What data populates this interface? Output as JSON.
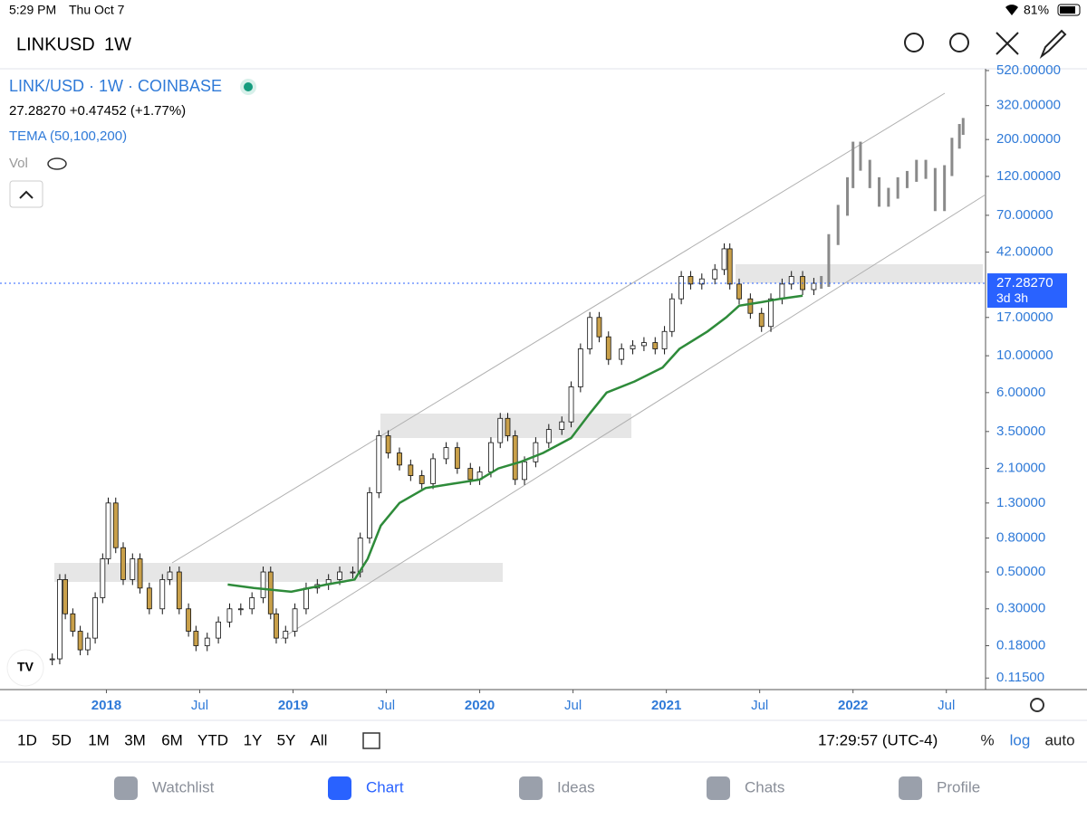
{
  "status_bar": {
    "time": "5:29 PM",
    "date": "Thu Oct 7",
    "battery": "81%"
  },
  "header": {
    "symbol": "LINKUSD",
    "interval": "1W"
  },
  "legend": {
    "title": "LINK/USD · 1W · COINBASE",
    "quote": "27.28270 +0.47452 (+1.77%)",
    "indicator": "TEMA (50,100,200)",
    "volume": "Vol"
  },
  "chart_data": {
    "type": "candlestick",
    "log_scale": true,
    "up_color": "#ffffff",
    "down_color": "#c9a04a",
    "x": [
      2017.71,
      2017.75,
      2017.78,
      2017.82,
      2017.86,
      2017.9,
      2017.94,
      2017.98,
      2018.01,
      2018.05,
      2018.09,
      2018.14,
      2018.18,
      2018.23,
      2018.3,
      2018.34,
      2018.39,
      2018.44,
      2018.48,
      2018.54,
      2018.6,
      2018.66,
      2018.72,
      2018.78,
      2018.84,
      2018.88,
      2018.91,
      2018.96,
      2019.01,
      2019.07,
      2019.13,
      2019.19,
      2019.25,
      2019.32,
      2019.36,
      2019.41,
      2019.46,
      2019.51,
      2019.57,
      2019.63,
      2019.69,
      2019.75,
      2019.82,
      2019.88,
      2019.95,
      2020.0,
      2020.06,
      2020.11,
      2020.15,
      2020.19,
      2020.24,
      2020.3,
      2020.37,
      2020.44,
      2020.49,
      2020.54,
      2020.59,
      2020.64,
      2020.69,
      2020.76,
      2020.82,
      2020.88,
      2020.94,
      2020.99,
      2021.03,
      2021.08,
      2021.13,
      2021.19,
      2021.26,
      2021.31,
      2021.34,
      2021.39,
      2021.45,
      2021.51,
      2021.56,
      2021.62,
      2021.67,
      2021.73,
      2021.79
    ],
    "values": [
      0.15,
      0.45,
      0.28,
      0.22,
      0.17,
      0.2,
      0.35,
      0.6,
      1.3,
      0.7,
      0.45,
      0.6,
      0.4,
      0.3,
      0.45,
      0.5,
      0.3,
      0.22,
      0.18,
      0.2,
      0.25,
      0.3,
      0.3,
      0.35,
      0.5,
      0.28,
      0.2,
      0.22,
      0.3,
      0.4,
      0.42,
      0.45,
      0.5,
      0.5,
      0.8,
      1.5,
      3.3,
      2.6,
      2.2,
      1.9,
      1.7,
      2.4,
      2.8,
      2.1,
      1.8,
      2.0,
      3.0,
      4.2,
      3.3,
      1.8,
      2.3,
      3.0,
      3.6,
      4.0,
      6.5,
      11,
      17,
      13,
      9.5,
      11,
      11.5,
      12,
      11,
      14,
      22,
      30,
      27,
      29,
      33,
      44,
      27,
      22,
      18,
      15,
      22,
      27,
      30,
      25,
      27.2827
    ],
    "projection": {
      "color": "#8a8a8a",
      "x": [
        2021.83,
        2021.87,
        2021.92,
        2021.97,
        2022.0,
        2022.04,
        2022.09,
        2022.14,
        2022.19,
        2022.24,
        2022.29,
        2022.34,
        2022.39,
        2022.44,
        2022.49,
        2022.53,
        2022.57,
        2022.59
      ],
      "values": [
        28,
        50,
        75,
        110,
        180,
        140,
        110,
        85,
        95,
        110,
        120,
        140,
        125,
        80,
        130,
        190,
        230,
        250
      ]
    },
    "series": [
      {
        "name": "TEMA (50,100,200)",
        "color": "#2e8b3a",
        "x": [
          2018.65,
          2018.79,
          2018.99,
          2019.18,
          2019.33,
          2019.4,
          2019.47,
          2019.57,
          2019.71,
          2019.86,
          2020.0,
          2020.1,
          2020.22,
          2020.34,
          2020.49,
          2020.59,
          2020.68,
          2020.83,
          2020.98,
          2021.07,
          2021.22,
          2021.32,
          2021.39,
          2021.51,
          2021.61,
          2021.73
        ],
        "values": [
          0.42,
          0.4,
          0.38,
          0.42,
          0.45,
          0.6,
          0.95,
          1.3,
          1.6,
          1.7,
          1.8,
          2.1,
          2.3,
          2.6,
          3.2,
          4.5,
          6.0,
          7.0,
          8.5,
          11,
          14,
          17,
          20,
          21,
          22,
          23
        ]
      }
    ],
    "price_tag": {
      "value": 27.2827,
      "label": "27.28270",
      "countdown": "3d 3h",
      "color": "#2962ff"
    },
    "xlim": [
      2017.43,
      2022.71
    ],
    "ylim": [
      0.098,
      533
    ],
    "xticks": [
      {
        "value": 2018,
        "label": "2018"
      },
      {
        "value": 2018.5,
        "label": "Jul"
      },
      {
        "value": 2019,
        "label": "2019"
      },
      {
        "value": 2019.5,
        "label": "Jul"
      },
      {
        "value": 2020,
        "label": "2020"
      },
      {
        "value": 2020.5,
        "label": "Jul"
      },
      {
        "value": 2021,
        "label": "2021"
      },
      {
        "value": 2021.5,
        "label": "Jul"
      },
      {
        "value": 2022,
        "label": "2022"
      },
      {
        "value": 2022.5,
        "label": "Jul"
      }
    ],
    "yticks": [
      {
        "value": 520,
        "label": "520.00000"
      },
      {
        "value": 320,
        "label": "320.00000"
      },
      {
        "value": 200,
        "label": "200.00000"
      },
      {
        "value": 120,
        "label": "120.00000"
      },
      {
        "value": 70,
        "label": "70.00000"
      },
      {
        "value": 42,
        "label": "42.00000"
      },
      {
        "value": 17,
        "label": "17.00000"
      },
      {
        "value": 10,
        "label": "10.00000"
      },
      {
        "value": 6,
        "label": "6.00000"
      },
      {
        "value": 3.5,
        "label": "3.50000"
      },
      {
        "value": 2.1,
        "label": "2.10000"
      },
      {
        "value": 1.3,
        "label": "1.30000"
      },
      {
        "value": 0.8,
        "label": "0.80000"
      },
      {
        "value": 0.5,
        "label": "0.50000"
      },
      {
        "value": 0.3,
        "label": "0.30000"
      },
      {
        "value": 0.18,
        "label": "0.18000"
      },
      {
        "value": 0.115,
        "label": "0.11500"
      }
    ]
  },
  "range_buttons": [
    "1D",
    "5D",
    "1M",
    "3M",
    "6M",
    "YTD",
    "1Y",
    "5Y",
    "All"
  ],
  "clock": "17:29:57 (UTC-4)",
  "scale_buttons": [
    "%",
    "log",
    "auto"
  ],
  "tabs": [
    "Watchlist",
    "Chart",
    "Ideas",
    "Chats",
    "Profile"
  ]
}
